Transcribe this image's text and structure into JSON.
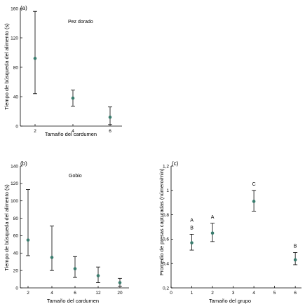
{
  "colors": {
    "point": "#3a7d6e",
    "axis": "#000000",
    "errorbar": "#000000"
  },
  "chart_data": [
    {
      "id": "a",
      "type": "scatter",
      "panel_label": "(a)",
      "annotation": "Pez dorado",
      "xlabel": "Tamaño del cardumen",
      "ylabel": "Tiempo de búsqueda del alimento (s)",
      "categories": [
        "2",
        "4",
        "6"
      ],
      "ylim": [
        0,
        160
      ],
      "yticks": [
        "0",
        "40",
        "80",
        "120",
        "160"
      ],
      "ytick_values": [
        0,
        40,
        80,
        120,
        160
      ],
      "series": [
        {
          "values": [
            92,
            38,
            12
          ],
          "lower": [
            44,
            27,
            2
          ],
          "upper": [
            156,
            49,
            26
          ]
        }
      ],
      "point_labels": [],
      "grid": false
    },
    {
      "id": "b",
      "type": "scatter",
      "panel_label": "(b)",
      "annotation": "Gobio",
      "xlabel": "Tamaño del cardumen",
      "ylabel": "Tiempo de búsqueda del alimento (s)",
      "categories": [
        "2",
        "4",
        "6",
        "12",
        "20"
      ],
      "ylim": [
        0,
        140
      ],
      "yticks": [
        "0",
        "20",
        "40",
        "60",
        "80",
        "100",
        "120",
        "140"
      ],
      "ytick_values": [
        0,
        20,
        40,
        60,
        80,
        100,
        120,
        140
      ],
      "series": [
        {
          "values": [
            55,
            35,
            22,
            14,
            6
          ],
          "lower": [
            37,
            20,
            12,
            6,
            2
          ],
          "upper": [
            113,
            71,
            36,
            24,
            11
          ]
        }
      ],
      "point_labels": [],
      "grid": false
    },
    {
      "id": "c",
      "type": "scatter",
      "panel_label": "(c)",
      "annotation": "",
      "xlabel": "Tamaño del grupo",
      "ylabel": "Promedio de presas capturadas (número/min)",
      "x": [
        1,
        2,
        4,
        6
      ],
      "xlim": [
        0,
        6.3
      ],
      "xticks": [
        "0",
        "1",
        "2",
        "3",
        "4",
        "5",
        "6"
      ],
      "xtick_values": [
        0,
        1,
        2,
        3,
        4,
        5,
        6
      ],
      "ylim": [
        0.2,
        1.2
      ],
      "yticks": [
        "0,2",
        "0,4",
        "0,6",
        "0,8",
        "1",
        "1,2"
      ],
      "ytick_values": [
        0.2,
        0.4,
        0.6,
        0.8,
        1.0,
        1.2
      ],
      "series": [
        {
          "values": [
            0.57,
            0.65,
            0.91,
            0.43
          ],
          "lower": [
            0.51,
            0.58,
            0.83,
            0.39
          ],
          "upper": [
            0.64,
            0.73,
            1.0,
            0.49
          ]
        }
      ],
      "point_labels": [
        [
          "A",
          "B"
        ],
        [
          "A"
        ],
        [
          "C"
        ],
        [
          "B"
        ]
      ],
      "grid": false
    }
  ]
}
